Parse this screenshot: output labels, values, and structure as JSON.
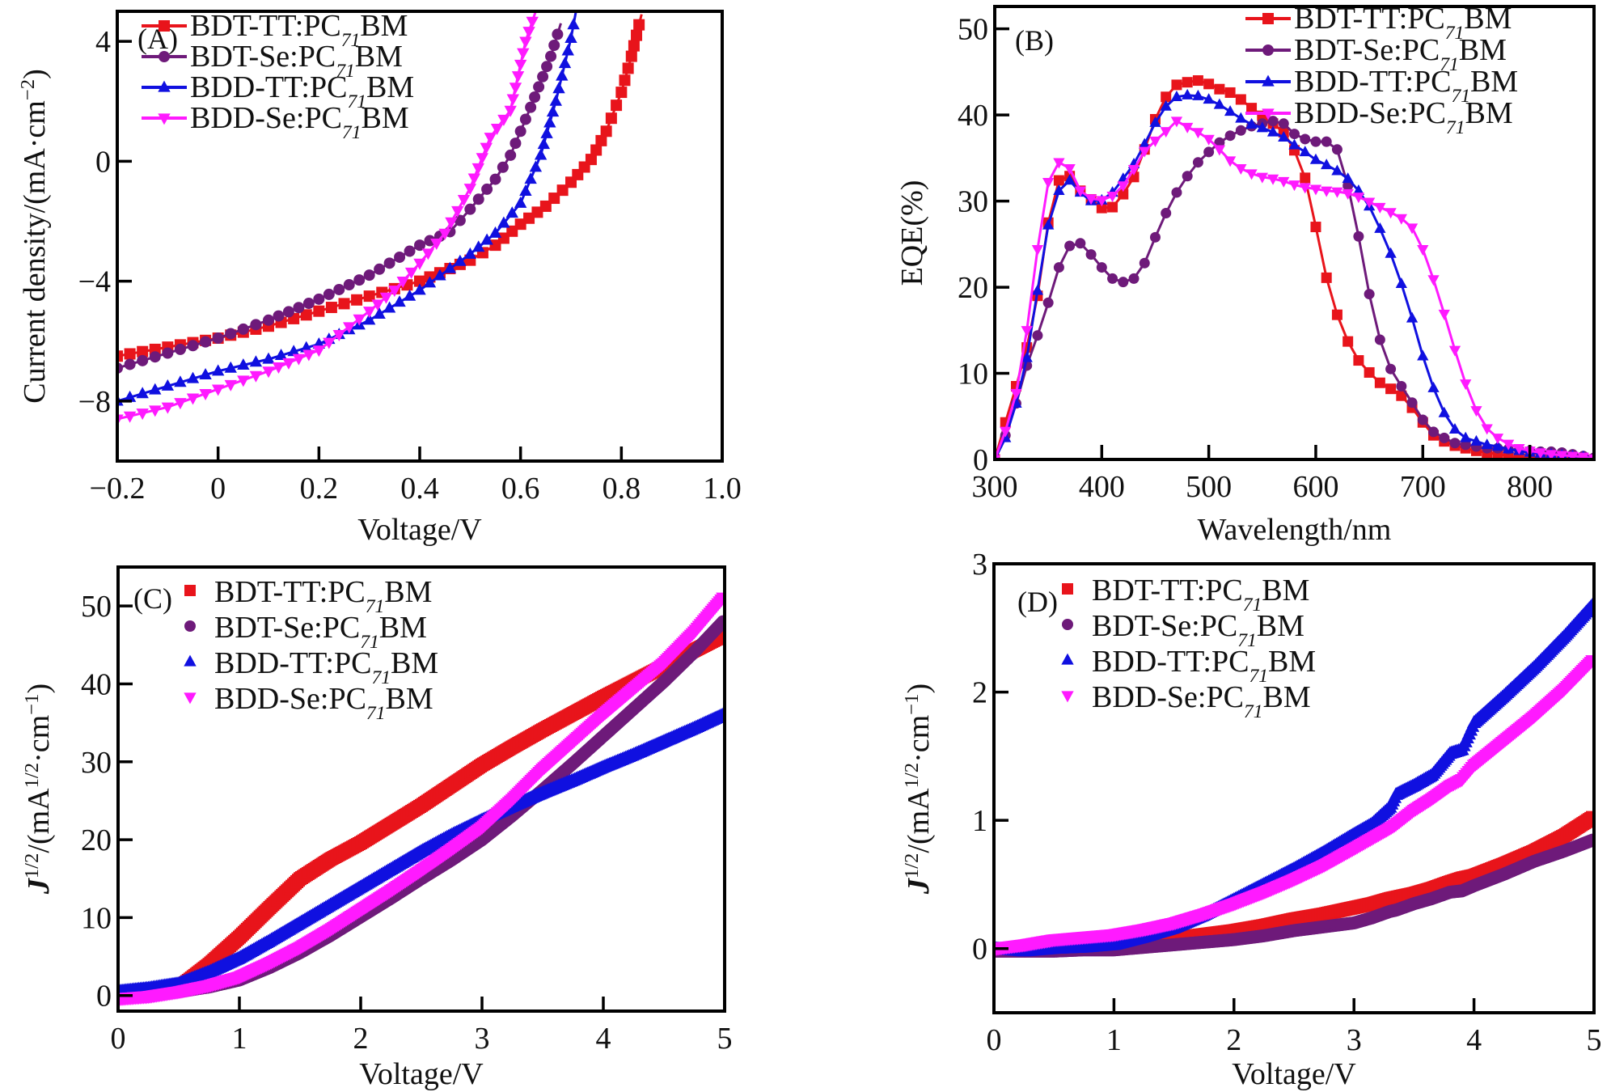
{
  "figure": {
    "series_names": [
      "BDT-TT:PC71BM",
      "BDT-Se:PC71BM",
      "BDD-TT:PC71BM",
      "BDD-Se:PC71BM"
    ],
    "series_colors": {
      "BDT-TT:PC71BM": "#e8141b",
      "BDT-Se:PC71BM": "#6e1a7a",
      "BDD-TT:PC71BM": "#1010e0",
      "BDD-Se:PC71BM": "#ff1aff"
    },
    "series_markers": {
      "BDT-TT:PC71BM": "square",
      "BDT-Se:PC71BM": "circle",
      "BDD-TT:PC71BM": "triangle-up",
      "BDD-Se:PC71BM": "triangle-down"
    }
  },
  "chart_data": [
    {
      "id": "A",
      "panel_label": "(A)",
      "type": "line",
      "title": "",
      "xlabel": "Voltage/V",
      "ylabel": "Current density/(mA·cm⁻²)",
      "xlim": [
        -0.2,
        1.0
      ],
      "ylim": [
        -10,
        5
      ],
      "xticks": [
        -0.2,
        0,
        0.2,
        0.4,
        0.6,
        0.8,
        1.0
      ],
      "xtick_labels": [
        "−0.2",
        "0",
        "0.2",
        "0.4",
        "0.6",
        "0.8",
        "1.0"
      ],
      "yticks": [
        -8,
        -4,
        0,
        4
      ],
      "ytick_labels": [
        "−8",
        "−4",
        "0",
        "4"
      ],
      "legend": {
        "placement": "top-left",
        "style": "line-marker"
      },
      "grid": false,
      "series": [
        {
          "name": "BDT-TT:PC71BM",
          "x": [
            -0.2,
            -0.1,
            0,
            0.1,
            0.2,
            0.3,
            0.4,
            0.5,
            0.55,
            0.6,
            0.65,
            0.7,
            0.74,
            0.77,
            0.8,
            0.82,
            0.84
          ],
          "y": [
            -6.5,
            -6.2,
            -5.9,
            -5.5,
            -5.0,
            -4.5,
            -4.0,
            -3.3,
            -2.8,
            -2.1,
            -1.5,
            -0.7,
            0.06,
            1.0,
            2.3,
            3.5,
            4.9
          ]
        },
        {
          "name": "BDT-Se:PC71BM",
          "x": [
            -0.2,
            -0.1,
            0,
            0.1,
            0.2,
            0.3,
            0.4,
            0.46,
            0.5,
            0.55,
            0.58,
            0.62,
            0.66,
            0.68
          ],
          "y": [
            -6.9,
            -6.4,
            -5.9,
            -5.3,
            -4.6,
            -3.8,
            -2.8,
            -2.35,
            -1.6,
            -0.6,
            0.2,
            1.8,
            3.5,
            4.6
          ]
        },
        {
          "name": "BDD-TT:PC71BM",
          "x": [
            -0.2,
            -0.1,
            0,
            0.1,
            0.2,
            0.3,
            0.4,
            0.5,
            0.55,
            0.6,
            0.64,
            0.67,
            0.7,
            0.71
          ],
          "y": [
            -8.0,
            -7.5,
            -7.0,
            -6.6,
            -6.1,
            -5.3,
            -4.3,
            -3.1,
            -2.4,
            -1.4,
            0.2,
            2.0,
            4.1,
            5.0
          ]
        },
        {
          "name": "BDD-Se:PC71BM",
          "x": [
            -0.2,
            -0.1,
            0,
            0.1,
            0.2,
            0.3,
            0.35,
            0.4,
            0.45,
            0.5,
            0.54,
            0.58,
            0.61,
            0.63
          ],
          "y": [
            -8.6,
            -8.2,
            -7.6,
            -7.0,
            -6.3,
            -5.0,
            -4.3,
            -3.4,
            -2.4,
            -0.9,
            0.8,
            1.7,
            4.0,
            5.0
          ]
        }
      ]
    },
    {
      "id": "B",
      "panel_label": "(B)",
      "type": "line",
      "title": "",
      "xlabel": "Wavelength/nm",
      "ylabel": "EQE(%)",
      "xlim": [
        300,
        860
      ],
      "ylim": [
        0,
        52.6
      ],
      "xticks": [
        300,
        400,
        500,
        600,
        700,
        800
      ],
      "xtick_labels": [
        "300",
        "400",
        "500",
        "600",
        "700",
        "800"
      ],
      "yticks": [
        0,
        10,
        20,
        30,
        40,
        50
      ],
      "ytick_labels": [
        "0",
        "10",
        "20",
        "30",
        "40",
        "50"
      ],
      "legend": {
        "placement": "top-right",
        "style": "line-marker"
      },
      "grid": false,
      "x": [
        300,
        310,
        320,
        330,
        340,
        350,
        360,
        370,
        380,
        390,
        400,
        410,
        420,
        430,
        440,
        450,
        460,
        470,
        480,
        490,
        500,
        510,
        520,
        530,
        540,
        550,
        560,
        570,
        580,
        590,
        600,
        610,
        620,
        630,
        640,
        650,
        660,
        670,
        680,
        690,
        700,
        710,
        720,
        730,
        740,
        750,
        760,
        770,
        780,
        790,
        800,
        810,
        820,
        830,
        840,
        850,
        860
      ],
      "series": [
        {
          "name": "BDT-TT:PC71BM",
          "y": [
            0,
            4.3,
            8.5,
            13,
            19,
            27.5,
            32.4,
            32.9,
            31.2,
            30.2,
            29.2,
            29.3,
            30.8,
            32.8,
            36,
            39.5,
            42.1,
            43.5,
            43.8,
            44,
            43.6,
            43,
            42.6,
            41.8,
            40.8,
            39.9,
            39,
            38,
            35.9,
            32.7,
            27,
            21.1,
            16.8,
            13.7,
            11.5,
            10.1,
            8.9,
            8.2,
            7.4,
            6,
            4.3,
            2.8,
            2.1,
            1.6,
            1.3,
            1.0,
            0.8,
            0.6,
            0.4,
            0.2,
            0.1,
            0.1,
            0,
            0,
            0,
            0,
            0
          ]
        },
        {
          "name": "BDT-Se:PC71BM",
          "y": [
            0,
            2.8,
            6.5,
            10.9,
            14.4,
            18.2,
            22.3,
            24.8,
            25.1,
            23.8,
            22.3,
            21,
            20.6,
            21,
            22.8,
            25.8,
            28.6,
            31,
            32.9,
            34.5,
            35.7,
            36.8,
            37.6,
            38.2,
            38.7,
            39,
            39.3,
            39,
            37.8,
            37.2,
            36.9,
            36.9,
            36,
            31.8,
            25.9,
            19.2,
            13.9,
            10.5,
            8.5,
            6.6,
            4.6,
            3.2,
            2.5,
            1.9,
            1.7,
            1.5,
            1.3,
            1.3,
            1.2,
            1.1,
            1.0,
            0.9,
            0.9,
            0.8,
            0.6,
            0.4,
            0.2
          ]
        },
        {
          "name": "BDD-TT:PC71BM",
          "y": [
            0,
            2.5,
            6.5,
            11.8,
            19.6,
            27.2,
            31.2,
            32.4,
            31,
            30,
            30.1,
            31,
            32.6,
            34.3,
            36.6,
            39.1,
            41,
            42.1,
            42.3,
            42.2,
            41.8,
            41.2,
            40.4,
            39.6,
            38.9,
            38.5,
            38,
            37.4,
            36.5,
            35.7,
            34.8,
            34.2,
            33.5,
            32.6,
            31.2,
            29.4,
            26.8,
            23.9,
            20.4,
            16.4,
            12,
            8.3,
            5.4,
            3.5,
            2.5,
            2.1,
            1.7,
            1.5,
            1.2,
            1.0,
            0.8,
            0.7,
            0.6,
            0.5,
            0.4,
            0.3,
            0.2
          ]
        },
        {
          "name": "BDD-Se:PC71BM",
          "y": [
            0,
            3.3,
            7.7,
            15,
            24.4,
            32.2,
            34.5,
            33.8,
            31.2,
            30.3,
            30.1,
            30.6,
            31.8,
            33.7,
            35.8,
            37,
            38.1,
            39.3,
            38.6,
            38,
            37.2,
            36,
            34.7,
            33.8,
            33.2,
            32.8,
            32.6,
            32.3,
            31.9,
            31.6,
            31.4,
            31.2,
            31.1,
            30.9,
            30.5,
            29.9,
            29.3,
            28.7,
            28,
            26.9,
            24.4,
            20.9,
            16.9,
            12.7,
            8.8,
            5.7,
            3.6,
            2.5,
            1.8,
            1.3,
            1.0,
            0.8,
            0.6,
            0.5,
            0.4,
            0.3,
            0.1
          ]
        }
      ]
    },
    {
      "id": "C",
      "panel_label": "(C)",
      "type": "scatter",
      "title": "",
      "xlabel": "Voltage/V",
      "ylabel": "J1/2/(mA1/2·cm−1)",
      "xlim": [
        0,
        5
      ],
      "ylim": [
        -2,
        55
      ],
      "xticks": [
        0,
        1,
        2,
        3,
        4,
        5
      ],
      "xtick_labels": [
        "0",
        "1",
        "2",
        "3",
        "4",
        "5"
      ],
      "yticks": [
        0,
        10,
        20,
        30,
        40,
        50
      ],
      "ytick_labels": [
        "0",
        "10",
        "20",
        "30",
        "40",
        "50"
      ],
      "legend": {
        "placement": "top-left",
        "style": "marker-only"
      },
      "grid": false,
      "x": [
        0,
        0.25,
        0.5,
        0.75,
        1.0,
        1.25,
        1.5,
        1.75,
        2.0,
        2.25,
        2.5,
        2.75,
        3.0,
        3.25,
        3.5,
        3.75,
        4.0,
        4.25,
        4.5,
        4.75,
        5.0
      ],
      "series": [
        {
          "name": "BDT-TT:PC71BM",
          "y": [
            0.2,
            0.4,
            1.0,
            4.0,
            7.5,
            11.3,
            15,
            17.5,
            19.6,
            22.0,
            24.4,
            27.0,
            29.6,
            31.9,
            34.1,
            36.2,
            38.3,
            40.3,
            42.3,
            44.3,
            46.3
          ]
        },
        {
          "name": "BDT-Se:PC71BM",
          "y": [
            -0.3,
            -0.1,
            0.5,
            1.1,
            2.0,
            3.6,
            5.5,
            7.7,
            10.1,
            12.5,
            15.0,
            17.4,
            20.0,
            23.1,
            26.4,
            29.8,
            33.3,
            36.8,
            40.3,
            44.1,
            48.2
          ]
        },
        {
          "name": "BDD-TT:PC71BM",
          "y": [
            0.5,
            0.9,
            1.5,
            3.0,
            4.8,
            7.0,
            9.3,
            11.6,
            13.9,
            16.2,
            18.5,
            20.6,
            22.5,
            24.3,
            26.0,
            27.6,
            29.3,
            30.9,
            32.6,
            34.3,
            36.1
          ]
        },
        {
          "name": "BDD-Se:PC71BM",
          "y": [
            -0.4,
            -0.1,
            0.5,
            1.3,
            2.4,
            4.2,
            6.2,
            8.5,
            11.0,
            13.5,
            16.1,
            18.8,
            21.6,
            25.2,
            29.1,
            32.6,
            36.1,
            39.4,
            42.7,
            46.7,
            51.3
          ]
        }
      ]
    },
    {
      "id": "D",
      "panel_label": "(D)",
      "type": "scatter",
      "title": "",
      "xlabel": "Voltage/V",
      "ylabel": "J1/2/(mA1/2·cm−1)",
      "xlim": [
        0,
        5
      ],
      "ylim": [
        -0.5,
        3
      ],
      "xticks": [
        0,
        1,
        2,
        3,
        4,
        5
      ],
      "xtick_labels": [
        "0",
        "1",
        "2",
        "3",
        "4",
        "5"
      ],
      "yticks": [
        0,
        1,
        2,
        3
      ],
      "ytick_labels": [
        "0",
        "1",
        "2",
        "3"
      ],
      "legend": {
        "placement": "top-left",
        "style": "marker-only"
      },
      "grid": false,
      "x": [
        0,
        0.25,
        0.5,
        0.75,
        1.0,
        1.25,
        1.5,
        1.75,
        2.0,
        2.25,
        2.5,
        2.75,
        3.0,
        3.15,
        3.3,
        3.35,
        3.5,
        3.65,
        3.8,
        3.9,
        4.0,
        4.25,
        4.5,
        4.75,
        5.0
      ],
      "series": [
        {
          "name": "BDT-TT:PC71BM",
          "y": [
            0,
            0,
            0,
            0,
            0.01,
            0.04,
            0.08,
            0.11,
            0.14,
            0.18,
            0.23,
            0.27,
            0.32,
            0.35,
            0.39,
            0.4,
            0.43,
            0.47,
            0.52,
            0.55,
            0.57,
            0.66,
            0.76,
            0.88,
            1.03
          ]
        },
        {
          "name": "BDT-Se:PC71BM",
          "y": [
            -0.02,
            -0.02,
            -0.02,
            -0.01,
            -0.01,
            0.01,
            0.03,
            0.05,
            0.07,
            0.1,
            0.14,
            0.17,
            0.2,
            0.24,
            0.29,
            0.3,
            0.35,
            0.39,
            0.44,
            0.45,
            0.49,
            0.58,
            0.68,
            0.76,
            0.85
          ]
        },
        {
          "name": "BDD-TT:PC71BM",
          "y": [
            0,
            -0.02,
            0,
            0.01,
            0.03,
            0.09,
            0.16,
            0.26,
            0.38,
            0.5,
            0.62,
            0.75,
            0.89,
            0.97,
            1.1,
            1.2,
            1.27,
            1.35,
            1.52,
            1.55,
            1.76,
            1.97,
            2.19,
            2.43,
            2.69
          ]
        },
        {
          "name": "BDD-Se:PC71BM",
          "y": [
            0,
            0.03,
            0.07,
            0.09,
            0.11,
            0.15,
            0.2,
            0.27,
            0.35,
            0.44,
            0.54,
            0.65,
            0.78,
            0.86,
            0.94,
            0.97,
            1.08,
            1.17,
            1.27,
            1.32,
            1.43,
            1.62,
            1.81,
            2.02,
            2.26
          ]
        }
      ]
    }
  ]
}
